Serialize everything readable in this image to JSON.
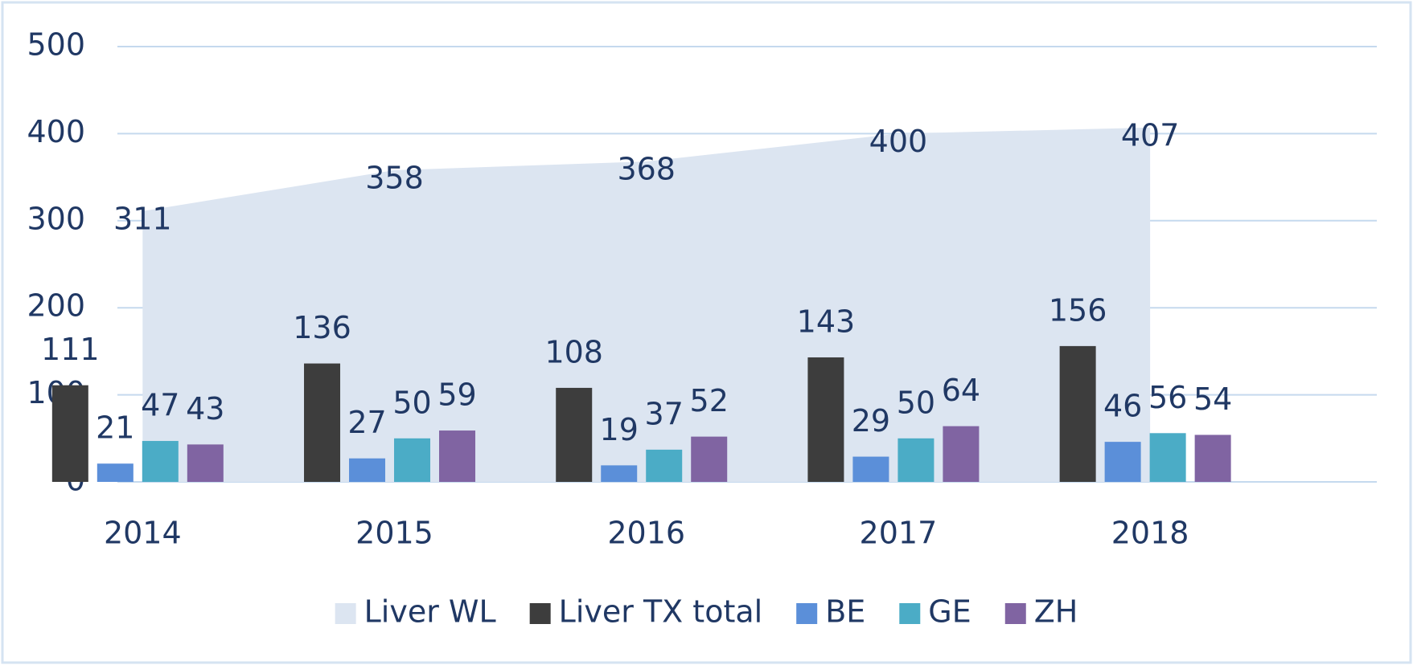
{
  "chart_data": {
    "type": "bar",
    "categories": [
      "2014",
      "2015",
      "2016",
      "2017",
      "2018"
    ],
    "series": [
      {
        "name": "Liver WL",
        "type": "area",
        "color": "#dce5f1",
        "values": [
          311,
          358,
          368,
          400,
          407
        ]
      },
      {
        "name": "Liver TX total",
        "color": "#3d3d3d",
        "values": [
          111,
          136,
          108,
          143,
          156
        ]
      },
      {
        "name": "BE",
        "color": "#5b8fd9",
        "values": [
          21,
          27,
          19,
          29,
          46
        ]
      },
      {
        "name": "GE",
        "color": "#4bacc6",
        "values": [
          47,
          50,
          37,
          50,
          56
        ]
      },
      {
        "name": "ZH",
        "color": "#8064a2",
        "values": [
          43,
          59,
          52,
          64,
          54
        ]
      }
    ],
    "ylim": [
      0,
      500
    ],
    "yticks": [
      0,
      100,
      200,
      300,
      400,
      500
    ],
    "grid": true,
    "legend": "bottom"
  }
}
